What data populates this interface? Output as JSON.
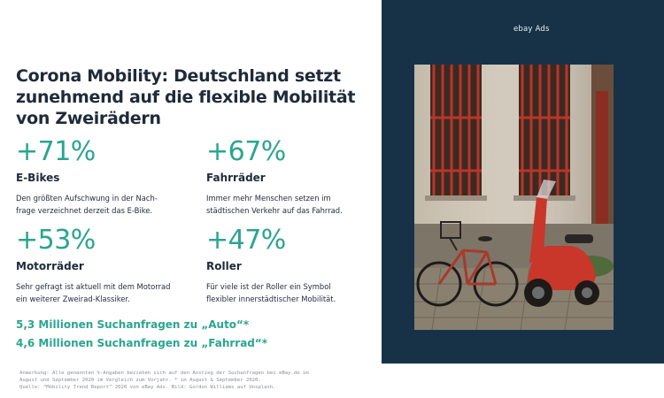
{
  "title": "Corona Mobility: Deutschland setzt zunehmend auf die flexible Mobilität von Zweirädern",
  "stats": [
    {
      "value": "+71%",
      "label": "E-Bikes",
      "description": "Den größten Aufschwung in der Nach-\nfrage verzeichnet derzeit das E-Bike."
    },
    {
      "value": "+67%",
      "label": "Fahrräder",
      "description": "Immer mehr Menschen setzen im\nstädtischen Verkehr auf das Fahrrad."
    },
    {
      "value": "+53%",
      "label": "Motorräder",
      "description": "Sehr gefragt ist aktuell mit dem Motorrad\nein weiterer Zweirad-Klassiker."
    },
    {
      "value": "+47%",
      "label": "Roller",
      "description": "Für viele ist der Roller ein Symbol\nflexibler innerstädtischer Mobilität."
    }
  ],
  "search_requests": [
    "5,3 Millionen Suchanfragen zu „Auto“*",
    "4,6 Millionen Suchanfragen zu „Fahrrad“*"
  ],
  "footnote": {
    "line1": "Anmerkung: Alle genannten %-Angaben beziehen sich auf den Anstieg der Suchanfragen bei eBay.de im",
    "line2": "August und September 2020 im Vergleich zum Vorjahr. * im August & September 2020.",
    "line3": "Quelle: “Mobility Trend Report” 2020 von eBay Ads. Bild: Gordon Williams auf Unsplash."
  },
  "brand": "ebay Ads",
  "colors": {
    "accent": "#2aa58f",
    "panel": "#173247",
    "text": "#1f2a3a"
  },
  "photo_subject": "street-scene-bicycle-and-red-scooter"
}
